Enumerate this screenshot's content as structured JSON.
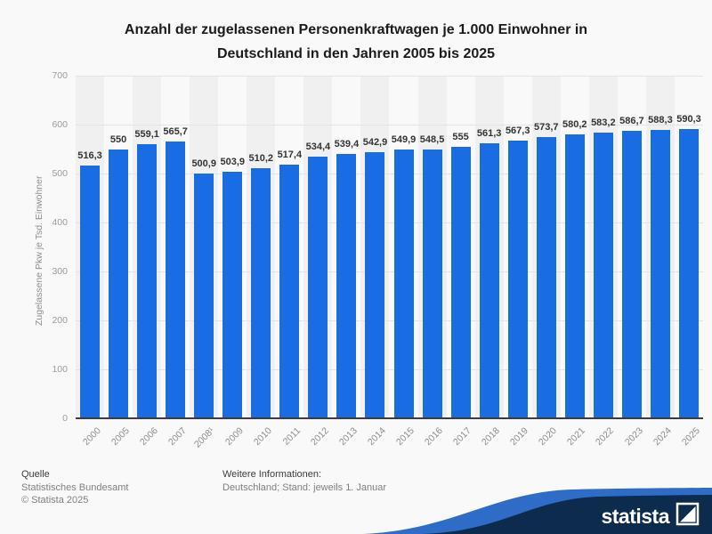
{
  "title": {
    "line1": "Anzahl der zugelassenen Personenkraftwagen je 1.000 Einwohner in",
    "line2": "Deutschland in den Jahren 2005 bis 2025"
  },
  "chart_data": {
    "type": "bar",
    "title": "Anzahl der zugelassenen Personenkraftwagen je 1.000 Einwohner in Deutschland in den Jahren 2005 bis 2025",
    "categories": [
      "2000",
      "2005",
      "2006",
      "2007",
      "2008¹",
      "2009",
      "2010",
      "2011",
      "2012",
      "2013",
      "2014",
      "2015",
      "2016",
      "2017",
      "2018",
      "2019",
      "2020",
      "2021",
      "2022",
      "2023",
      "2024",
      "2025"
    ],
    "values": [
      516.3,
      550,
      559.1,
      565.7,
      500.9,
      503.9,
      510.2,
      517.4,
      534.4,
      539.4,
      542.9,
      549.9,
      548.5,
      555,
      561.3,
      567.3,
      573.7,
      580.2,
      583.2,
      586.7,
      588.3,
      590.3
    ],
    "value_labels": [
      "516,3",
      "550",
      "559,1",
      "565,7",
      "500,9",
      "503,9",
      "510,2",
      "517,4",
      "534,4",
      "539,4",
      "542,9",
      "549,9",
      "548,5",
      "555",
      "561,3",
      "567,3",
      "573,7",
      "580,2",
      "583,2",
      "586,7",
      "588,3",
      "590,3"
    ],
    "xlabel": "",
    "ylabel": "Zugelassene Pkw je Tsd. Einwohner",
    "ylim": [
      0,
      700
    ],
    "yticks": [
      0,
      100,
      200,
      300,
      400,
      500,
      600,
      700
    ],
    "bar_color": "#1a6ce2",
    "grid": true,
    "legend_position": "none"
  },
  "footer": {
    "source_label": "Quelle",
    "source": "Statistisches Bundesamt",
    "copyright": "© Statista 2025",
    "info_label": "Weitere Informationen:",
    "info": "Deutschland; Stand: jeweils 1. Januar"
  },
  "branding": {
    "logo_text": "statista",
    "navy": "#0d2b4c",
    "swoosh_blue": "#2e6cc8"
  }
}
